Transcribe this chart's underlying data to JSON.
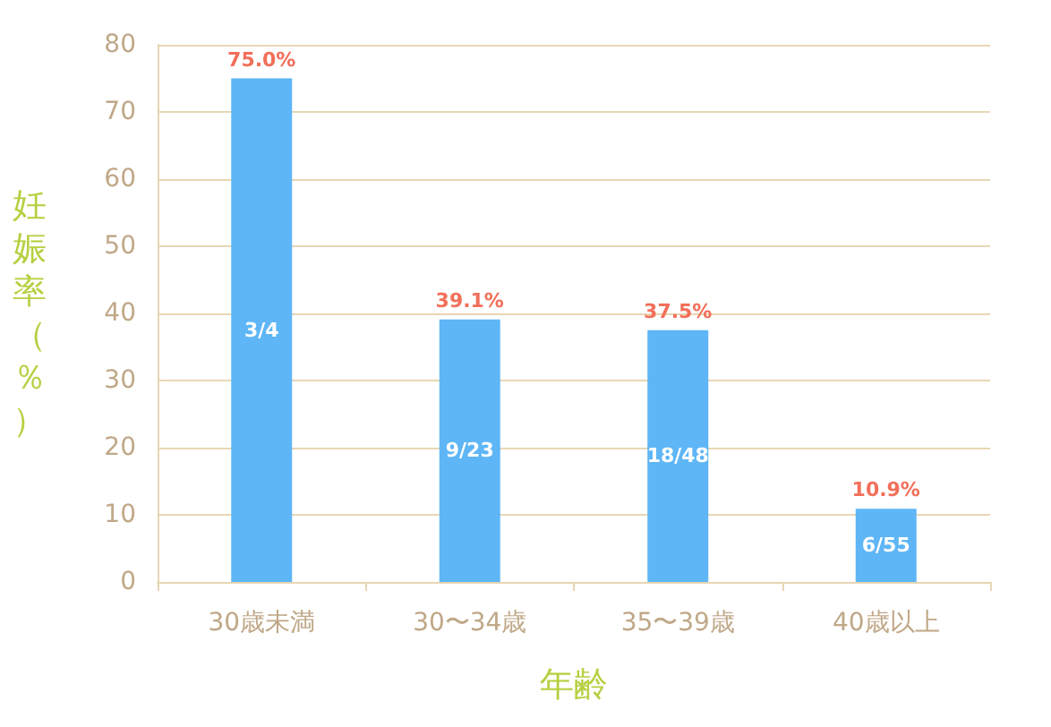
{
  "chart_data": {
    "type": "bar",
    "xlabel": "年齢",
    "ylabel": "妊娠率（％）",
    "categories": [
      "30歳未満",
      "30〜34歳",
      "35〜39歳",
      "40歳以上"
    ],
    "values": [
      75.0,
      39.1,
      37.5,
      10.9
    ],
    "color": "#5eb6f6",
    "value_labels": [
      "75.0%",
      "39.1%",
      "37.5%",
      "10.9%"
    ],
    "annotations": [
      "3/4",
      "9/23",
      "18/48",
      "6/55"
    ],
    "ylim": [
      0,
      80
    ],
    "yticks": [
      0,
      10,
      20,
      30,
      40,
      50,
      60,
      70,
      80
    ],
    "grid": "y"
  }
}
